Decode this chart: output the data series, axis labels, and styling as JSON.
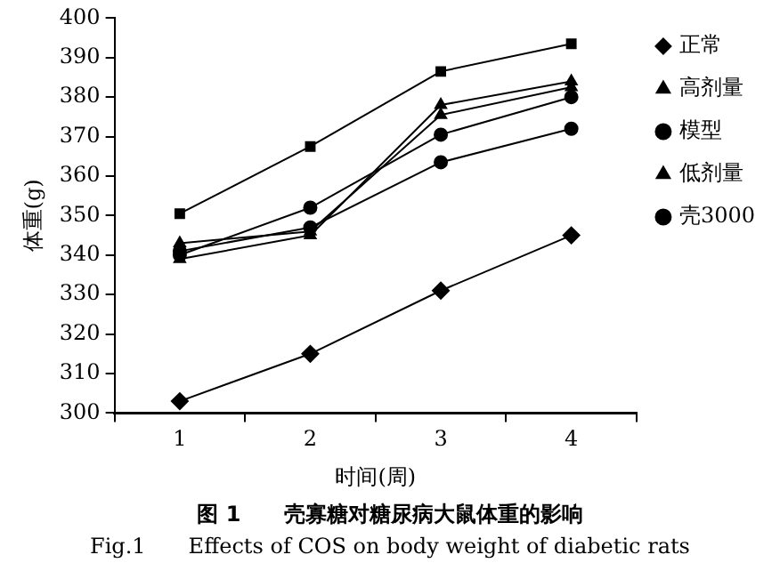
{
  "chart_data": {
    "type": "line",
    "title": "图 1　　壳寡糖对糖尿病大鼠体重的影响",
    "subtitle": "Fig.1　　Effects of COS on body weight of diabetic rats",
    "xlabel": "时间(周)",
    "ylabel": "体重(g)",
    "categories": [
      "1",
      "2",
      "3",
      "4"
    ],
    "ylim": [
      300,
      400
    ],
    "yticks": [
      300,
      310,
      320,
      330,
      340,
      350,
      360,
      370,
      380,
      390,
      400
    ],
    "grid": false,
    "legend": "right",
    "line_style": "solid",
    "series": [
      {
        "name": "正常",
        "color": "#000000",
        "marker": "diamond",
        "values": [
          303,
          315,
          331,
          345
        ]
      },
      {
        "color": "#000000",
        "marker": "square",
        "values": [
          350.5,
          367.5,
          386.5,
          393.5
        ]
      },
      {
        "name": "高剂量",
        "color": "#000000",
        "marker": "triangle",
        "values": [
          339,
          345,
          378,
          384
        ]
      },
      {
        "name": "模型",
        "color": "#000000",
        "marker": "circle",
        "values": [
          341,
          347,
          363.5,
          372
        ]
      },
      {
        "name": "低剂量",
        "color": "#000000",
        "marker": "triangle",
        "values": [
          343,
          346,
          375.5,
          382.5
        ]
      },
      {
        "name": "壳3000",
        "color": "#000000",
        "marker": "circle",
        "values": [
          340,
          352,
          370.5,
          380
        ]
      }
    ]
  }
}
